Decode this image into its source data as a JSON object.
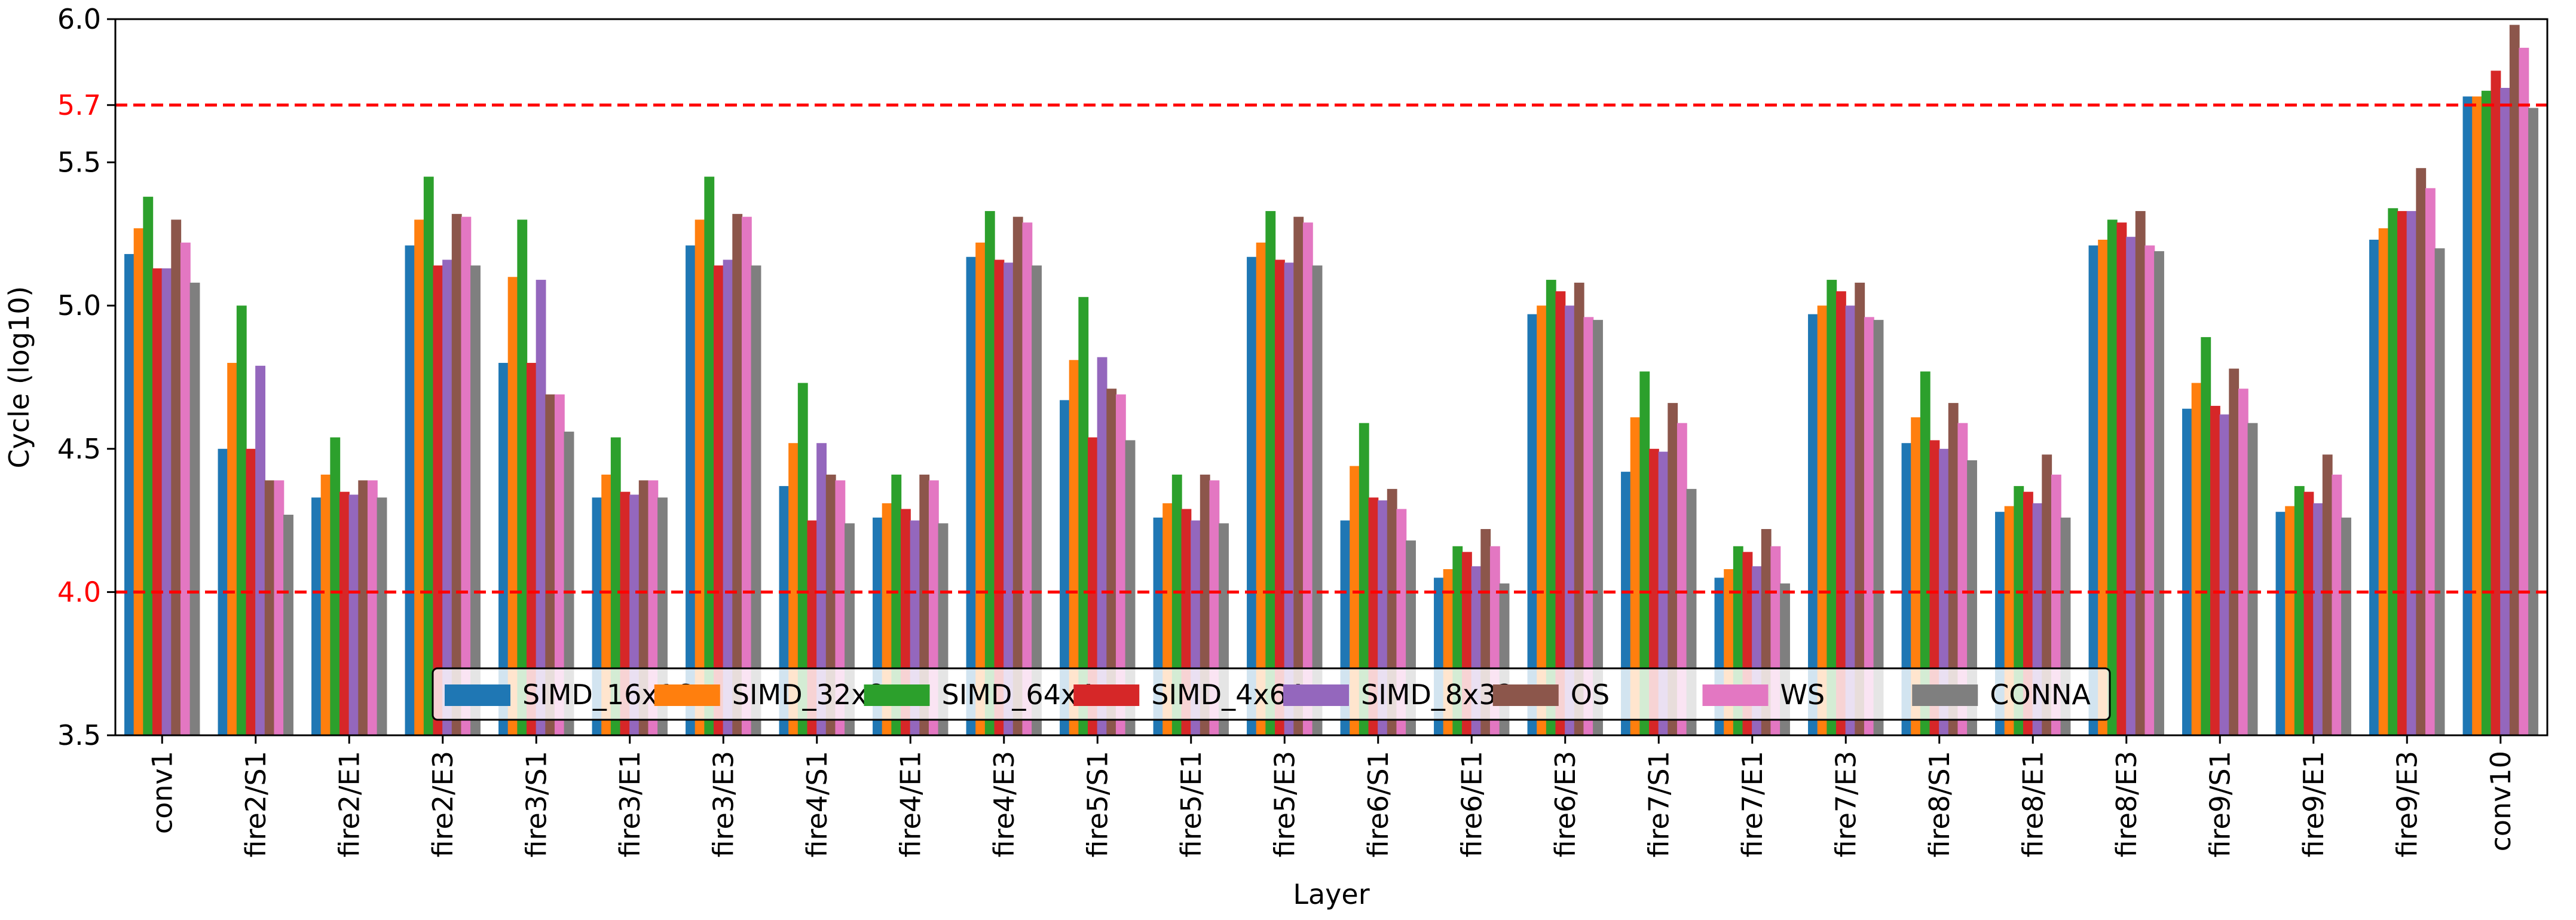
{
  "chart_data": {
    "type": "bar",
    "title": "",
    "xlabel": "Layer",
    "ylabel": "Cycle (log10)",
    "ylim": [
      3.5,
      6.0
    ],
    "yticks": [
      3.5,
      4.0,
      4.5,
      5.0,
      5.5,
      5.7,
      6.0
    ],
    "ytick_labels": [
      "3.5",
      "4.0",
      "4.5",
      "5.0",
      "5.5",
      "5.7",
      "6.0"
    ],
    "highlight_ticks": [
      "4.0",
      "5.7"
    ],
    "reference_lines": [
      {
        "value": 4.0,
        "color": "#ff0000",
        "style": "dashed"
      },
      {
        "value": 5.7,
        "color": "#ff0000",
        "style": "dashed"
      }
    ],
    "legend_position": "bottom-right",
    "categories": [
      "conv1",
      "fire2/S1",
      "fire2/E1",
      "fire2/E3",
      "fire3/S1",
      "fire3/E1",
      "fire3/E3",
      "fire4/S1",
      "fire4/E1",
      "fire4/E3",
      "fire5/S1",
      "fire5/E1",
      "fire5/E3",
      "fire6/S1",
      "fire6/E1",
      "fire6/E3",
      "fire7/S1",
      "fire7/E1",
      "fire7/E3",
      "fire8/S1",
      "fire8/E1",
      "fire8/E3",
      "fire9/S1",
      "fire9/E1",
      "fire9/E3",
      "conv10"
    ],
    "series": [
      {
        "name": "SIMD_16x16",
        "color": "#1f77b4",
        "values": [
          5.18,
          4.5,
          4.33,
          5.21,
          4.8,
          4.33,
          5.21,
          4.37,
          4.26,
          5.17,
          4.67,
          4.26,
          5.17,
          4.25,
          4.05,
          4.97,
          4.42,
          4.05,
          4.97,
          4.52,
          4.28,
          5.21,
          4.64,
          4.28,
          5.23,
          5.73
        ]
      },
      {
        "name": "SIMD_32x8",
        "color": "#ff7f0e",
        "values": [
          5.27,
          4.8,
          4.41,
          5.3,
          5.1,
          4.41,
          5.3,
          4.52,
          4.31,
          5.22,
          4.81,
          4.31,
          5.22,
          4.44,
          4.08,
          5.0,
          4.61,
          4.08,
          5.0,
          4.61,
          4.3,
          5.23,
          4.73,
          4.3,
          5.27,
          5.73
        ]
      },
      {
        "name": "SIMD_64x4",
        "color": "#2ca02c",
        "values": [
          5.38,
          5.0,
          4.54,
          5.45,
          5.3,
          4.54,
          5.45,
          4.73,
          4.41,
          5.33,
          5.03,
          4.41,
          5.33,
          4.59,
          4.16,
          5.09,
          4.77,
          4.16,
          5.09,
          4.77,
          4.37,
          5.3,
          4.89,
          4.37,
          5.34,
          5.75
        ]
      },
      {
        "name": "SIMD_4x64",
        "color": "#d62728",
        "values": [
          5.13,
          4.5,
          4.35,
          5.14,
          4.8,
          4.35,
          5.14,
          4.25,
          4.29,
          5.16,
          4.54,
          4.29,
          5.16,
          4.33,
          4.14,
          5.05,
          4.5,
          4.14,
          5.05,
          4.53,
          4.35,
          5.29,
          4.65,
          4.35,
          5.33,
          5.82
        ]
      },
      {
        "name": "SIMD_8x32",
        "color": "#9467bd",
        "values": [
          5.13,
          4.79,
          4.34,
          5.16,
          5.09,
          4.34,
          5.16,
          4.52,
          4.25,
          5.15,
          4.82,
          4.25,
          5.15,
          4.32,
          4.09,
          5.0,
          4.49,
          4.09,
          5.0,
          4.5,
          4.31,
          5.24,
          4.62,
          4.31,
          5.33,
          5.76
        ]
      },
      {
        "name": "OS",
        "color": "#8c564b",
        "values": [
          5.3,
          4.39,
          4.39,
          5.32,
          4.69,
          4.39,
          5.32,
          4.41,
          4.41,
          5.31,
          4.71,
          4.41,
          5.31,
          4.36,
          4.22,
          5.08,
          4.66,
          4.22,
          5.08,
          4.66,
          4.48,
          5.33,
          4.78,
          4.48,
          5.48,
          5.98
        ]
      },
      {
        "name": "WS",
        "color": "#e377c2",
        "values": [
          5.22,
          4.39,
          4.39,
          5.31,
          4.69,
          4.39,
          5.31,
          4.39,
          4.39,
          5.29,
          4.69,
          4.39,
          5.29,
          4.29,
          4.16,
          4.96,
          4.59,
          4.16,
          4.96,
          4.59,
          4.41,
          5.21,
          4.71,
          4.41,
          5.41,
          5.9
        ]
      },
      {
        "name": "CONNA",
        "color": "#7f7f7f",
        "values": [
          5.08,
          4.27,
          4.33,
          5.14,
          4.56,
          4.33,
          5.14,
          4.24,
          4.24,
          5.14,
          4.53,
          4.24,
          5.14,
          4.18,
          4.03,
          4.95,
          4.36,
          4.03,
          4.95,
          4.46,
          4.26,
          5.19,
          4.59,
          4.26,
          5.2,
          5.69
        ]
      }
    ]
  }
}
